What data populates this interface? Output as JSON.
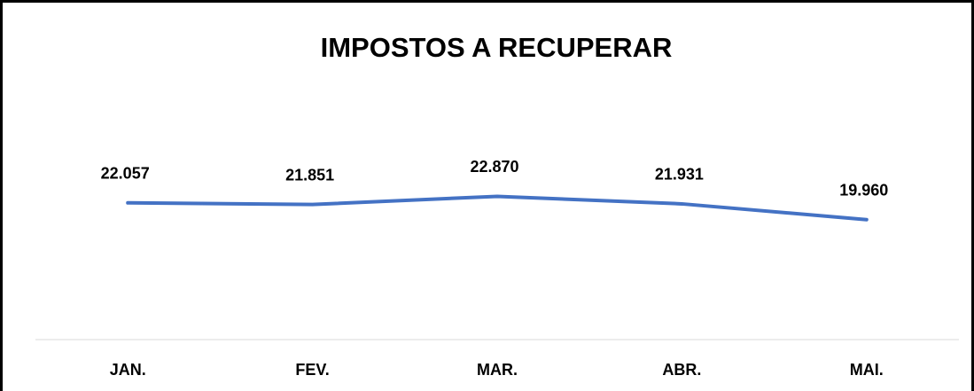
{
  "chart_data": {
    "type": "line",
    "title": "IMPOSTOS A RECUPERAR",
    "categories": [
      "JAN.",
      "FEV.",
      "MAR.",
      "ABR.",
      "MAI."
    ],
    "series": [
      {
        "color": "#4472c4",
        "values": [
          22057,
          21851,
          22870,
          21931,
          19960
        ],
        "value_labels": [
          "22.057",
          "21.851",
          "22.870",
          "21.931",
          "19.960"
        ]
      }
    ],
    "ylim": [
      5000,
      30000
    ]
  }
}
